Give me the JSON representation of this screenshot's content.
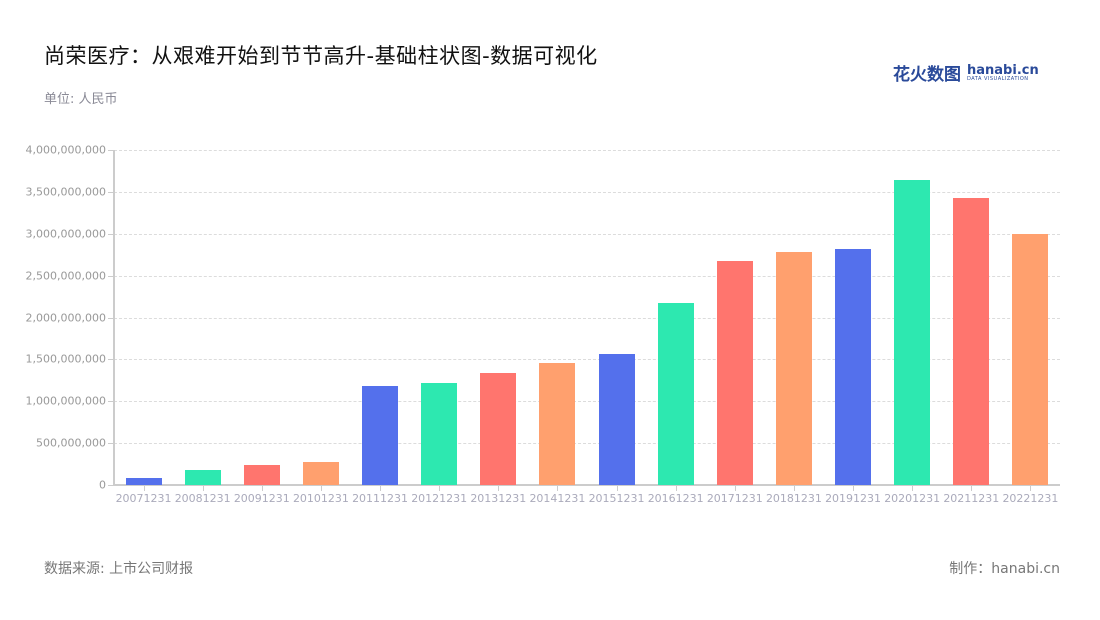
{
  "header": {
    "title": "尚荣医疗：从艰难开始到节节高升-基础柱状图-数据可视化",
    "unit": "单位: 人民币",
    "logo_cn": "花火数图",
    "logo_en": "hanabi.cn",
    "logo_sub": "DATA VISUALIZATION"
  },
  "footer": {
    "source": "数据来源: 上市公司财报",
    "maker": "制作：hanabi.cn"
  },
  "colors": [
    "#5470ec",
    "#2de8b0",
    "#ff756e",
    "#ffa06e"
  ],
  "chart_data": {
    "type": "bar",
    "title": "尚荣医疗：从艰难开始到节节高升-基础柱状图-数据可视化",
    "xlabel": "",
    "ylabel": "单位: 人民币",
    "ylim": [
      0,
      4000000000
    ],
    "grid": true,
    "legend": "none",
    "yticks": [
      "0",
      "500,000,000",
      "1,000,000,000",
      "1,500,000,000",
      "2,000,000,000",
      "2,500,000,000",
      "3,000,000,000",
      "3,500,000,000",
      "4,000,000,000"
    ],
    "categories": [
      "20071231",
      "20081231",
      "20091231",
      "20101231",
      "20111231",
      "20121231",
      "20131231",
      "20141231",
      "20151231",
      "20161231",
      "20171231",
      "20181231",
      "20191231",
      "20201231",
      "20211231",
      "20221231"
    ],
    "values": [
      80000000,
      180000000,
      240000000,
      280000000,
      1180000000,
      1220000000,
      1340000000,
      1460000000,
      1560000000,
      2170000000,
      2670000000,
      2780000000,
      2820000000,
      3640000000,
      3430000000,
      3000000000
    ]
  }
}
